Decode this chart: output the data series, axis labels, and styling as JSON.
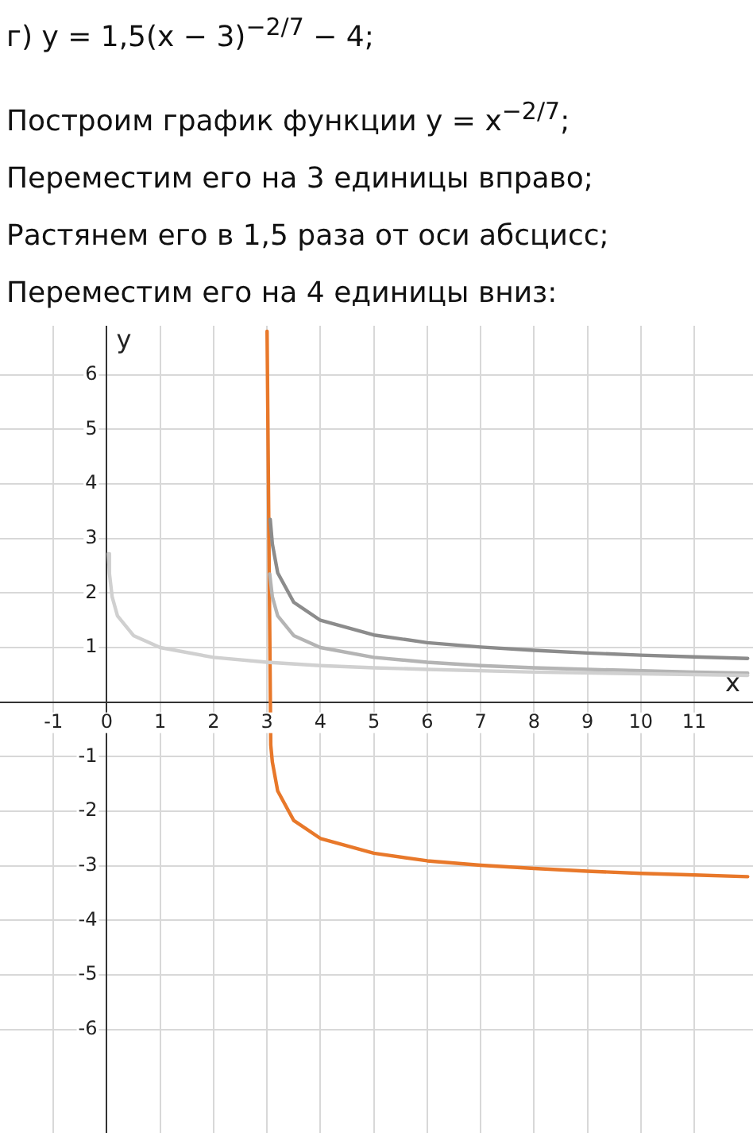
{
  "chart_data": {
    "type": "line",
    "title": "г) y = 1,5(x − 3)$^{−2/7}$ − 4;",
    "annotations": [
      "Построим график функции y = x$^{−2/7}$;",
      "Переместим его на 3 единицы вправо;",
      "Растянем его в 1,5 раза от оси абсцисс;",
      "Переместим его на 4 единицы вниз:"
    ],
    "xlabel": "x",
    "ylabel": "y",
    "xlim": [
      -2,
      12.1
    ],
    "ylim": [
      -7.9,
      6.9
    ],
    "xticks": [
      -1,
      0,
      1,
      2,
      3,
      4,
      5,
      6,
      7,
      8,
      9,
      10,
      11
    ],
    "yticks": [
      -6,
      -5,
      -4,
      -3,
      -2,
      -1,
      1,
      2,
      3,
      4,
      5,
      6
    ],
    "grid": true,
    "legend": false,
    "marker": "none",
    "line_style": "solid",
    "series": [
      {
        "color": "#d0d0d0",
        "x": [
          0.03,
          0.05,
          0.1,
          0.2,
          0.5,
          1,
          2,
          3,
          4,
          5,
          6,
          8,
          10,
          12
        ],
        "values": [
          2.72,
          2.35,
          1.93,
          1.58,
          1.22,
          1,
          0.82,
          0.73,
          0.67,
          0.63,
          0.6,
          0.55,
          0.52,
          0.49
        ]
      },
      {
        "color": "#b4b4b4",
        "x": [
          3.05,
          3.1,
          3.2,
          3.5,
          4,
          5,
          6,
          7,
          8,
          9,
          11,
          12
        ],
        "values": [
          2.35,
          1.93,
          1.58,
          1.22,
          1,
          0.82,
          0.73,
          0.67,
          0.63,
          0.6,
          0.55,
          0.53
        ]
      },
      {
        "color": "#8c8c8c",
        "x": [
          3.06,
          3.1,
          3.2,
          3.5,
          4,
          5,
          6,
          7,
          8,
          9,
          10,
          11,
          12
        ],
        "values": [
          3.35,
          2.9,
          2.37,
          1.83,
          1.5,
          1.23,
          1.09,
          1.01,
          0.95,
          0.9,
          0.86,
          0.83,
          0.8
        ]
      },
      {
        "color": "#e8782a",
        "x": [
          3.001,
          3.07,
          3.1,
          3.2,
          3.5,
          4,
          5,
          6,
          7,
          8,
          9,
          10,
          11,
          12
        ],
        "values": [
          6.8,
          -0.79,
          -1.1,
          -1.63,
          -2.17,
          -2.5,
          -2.77,
          -2.91,
          -2.99,
          -3.05,
          -3.1,
          -3.14,
          -3.17,
          -3.2
        ]
      }
    ]
  }
}
